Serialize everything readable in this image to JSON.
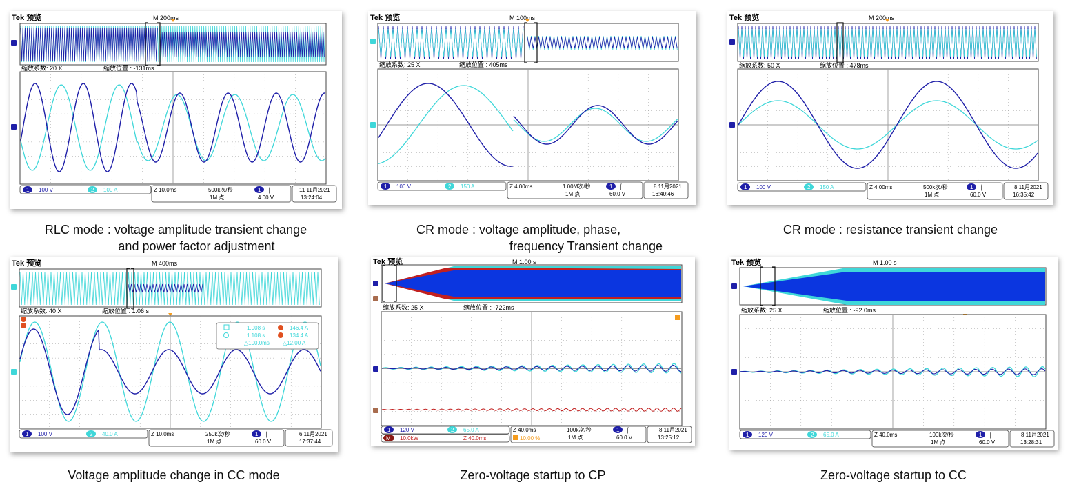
{
  "colors": {
    "ch1": "#1f1fa8",
    "ch2": "#3fd7d9",
    "math": "#c2201f",
    "ref": "#a86c4e",
    "trigger": "#f59c1e",
    "ch1_fill": "#0b36e0"
  },
  "panels": [
    {
      "id": "p1",
      "header": "Tek 预览",
      "time_mark": "M 200ms",
      "zoom_factor": "缩放系数: 20 X",
      "zoom_pos": "缩放位置 : -131ms",
      "ch1_scale": "100 V",
      "ch2_scale": "100 A",
      "timebase": "Z 10.0ms",
      "sample_rate": "500k次/秒",
      "record": "1M 点",
      "trigger_level": "4.00 V",
      "date": "11 11月2021",
      "time": "13:24:04",
      "caption_line1": "RLC mode : voltage amplitude transient change",
      "caption_line2": "and power factor adjustment"
    },
    {
      "id": "p2",
      "header": "Tek 预览",
      "time_mark": "M 100ms",
      "zoom_factor": "缩放系数: 25 X",
      "zoom_pos": "缩放位置 : 405ms",
      "ch1_scale": "100 V",
      "ch2_scale": "150 A",
      "timebase": "Z 4.00ms",
      "sample_rate": "1.00M次/秒",
      "record": "1M 点",
      "trigger_level": "60.0 V",
      "date": "8 11月2021",
      "time": "16:40:46",
      "caption_line1": "CR mode : voltage amplitude, phase,",
      "caption_line2": "frequency Transient change"
    },
    {
      "id": "p3",
      "header": "Tek 预览",
      "time_mark": "M 200ms",
      "zoom_factor": "缩放系数: 50 X",
      "zoom_pos": "缩放位置 : 478ms",
      "ch1_scale": "100 V",
      "ch2_scale": "150 A",
      "timebase": "Z 4.00ms",
      "sample_rate": "500k次/秒",
      "record": "1M 点",
      "trigger_level": "60.0 V",
      "date": "8 11月2021",
      "time": "16:35:42",
      "caption_line1": "CR mode : resistance transient change",
      "caption_line2": ""
    },
    {
      "id": "p4",
      "header": "Tek 预览",
      "time_mark": "M 400ms",
      "zoom_factor": "缩放系数: 40 X",
      "zoom_pos": "缩放位置 : 1.06 s",
      "ch1_scale": "100 V",
      "ch2_scale": "40.0 A",
      "timebase": "Z 10.0ms",
      "sample_rate": "250k次/秒",
      "record": "1M 点",
      "trigger_level": "60.0 V",
      "date": "6 11月2021",
      "time": "17:37:44",
      "cursor": {
        "t1": "1.008 s",
        "t2": "1.108 s",
        "dt": "△100.0ms",
        "a": "146.4 A",
        "b": "134.4 A",
        "da": "△12.00 A"
      },
      "caption_line1": "Voltage amplitude change in CC mode",
      "caption_line2": ""
    },
    {
      "id": "p5",
      "header": "Tek 预览",
      "time_mark": "M 1.00 s",
      "zoom_factor": "缩放系数: 25 X",
      "zoom_pos": "缩放位置 : -722ms",
      "ch1_scale": "120 V",
      "ch2_scale": "65.0 A",
      "math_scale": "10.0kW",
      "math_time": "Z 40.0ms",
      "trig_pct": "10.00 %",
      "timebase": "Z 40.0ms",
      "sample_rate": "100k次/秒",
      "record": "1M 点",
      "trigger_level": "60.0 V",
      "date": "8 11月2021",
      "time": "13:25:12",
      "caption_line1": "Zero-voltage startup to CP",
      "caption_line2": ""
    },
    {
      "id": "p6",
      "header": "Tek 预览",
      "time_mark": "M 1.00 s",
      "zoom_factor": "缩放系数: 25 X",
      "zoom_pos": "缩放位置 : -92.0ms",
      "ch1_scale": "120 V",
      "ch2_scale": "65.0 A",
      "timebase": "Z 40.0ms",
      "sample_rate": "100k次/秒",
      "record": "1M 点",
      "trigger_level": "60.0 V",
      "date": "8 11月2021",
      "time": "13:28:31",
      "caption_line1": "Zero-voltage startup to CC",
      "caption_line2": ""
    }
  ]
}
